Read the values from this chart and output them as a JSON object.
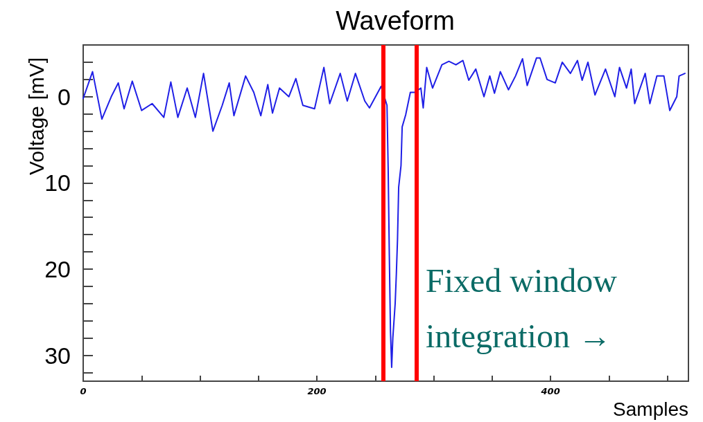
{
  "chart_data": {
    "type": "line",
    "title": "Waveform",
    "xlabel": "Samples",
    "ylabel": "Voltage [mV]",
    "annotations": [
      "Fixed window integration →"
    ],
    "series": [
      {
        "color": "#1f1fe6",
        "x": [
          0,
          8,
          16,
          24,
          30,
          35,
          42,
          50,
          59,
          69,
          75,
          81,
          89,
          96,
          103,
          111,
          119,
          125,
          129,
          139,
          146,
          152,
          158,
          162,
          168,
          176,
          182,
          188,
          198,
          206,
          211,
          220,
          226,
          233,
          241,
          245,
          251,
          255,
          260,
          261,
          262,
          263,
          264,
          265,
          267,
          268,
          269,
          270,
          272,
          273,
          276,
          280,
          284,
          289,
          291,
          294,
          299,
          307,
          313,
          319,
          325,
          330,
          336,
          343,
          348,
          352,
          357,
          364,
          370,
          376,
          380,
          388,
          391,
          397,
          404,
          410,
          417,
          423,
          427,
          432,
          438,
          447,
          455,
          459,
          465,
          469,
          472,
          481,
          485,
          491,
          497,
          502,
          508,
          510,
          515
        ],
        "values": [
          0.2,
          -2.9,
          2.6,
          0,
          -1.6,
          1.4,
          -1.8,
          1.6,
          0.8,
          2.4,
          -1.7,
          2.4,
          -1,
          2.4,
          -2.7,
          4,
          1,
          -1.6,
          2.2,
          -2.4,
          -0.5,
          2.2,
          -1.4,
          1.9,
          -1,
          0,
          -2.1,
          1,
          1.4,
          -3.4,
          0.8,
          -2.7,
          0.5,
          -2.7,
          0.5,
          1.3,
          -0.2,
          -1.2,
          1,
          8.2,
          18.4,
          27.2,
          31.4,
          28,
          24,
          20.6,
          16.6,
          10.5,
          8,
          3.5,
          2.1,
          -0.5,
          -0.5,
          -1,
          1.3,
          -3.4,
          -1,
          -3.7,
          -4.1,
          -3.7,
          -4.2,
          -1.9,
          -3.2,
          0,
          -2.4,
          -0.4,
          -2.9,
          -0.8,
          -2.4,
          -4.4,
          -1.3,
          -4.5,
          -4.5,
          -2,
          -1.6,
          -4,
          -2.7,
          -4.2,
          -1.9,
          -4,
          -0.2,
          -3.2,
          0,
          -3.4,
          -1,
          -3.2,
          0.8,
          -2.7,
          0.8,
          -2.4,
          -2.4,
          1.6,
          0,
          -2.4,
          -2.7
        ]
      }
    ],
    "xlim": [
      0,
      518
    ],
    "xticks": [
      0,
      {
        "value": 50,
        "label": null
      },
      {
        "value": 100,
        "label": null
      },
      {
        "value": 150,
        "label": null
      },
      200,
      {
        "value": 250,
        "label": null
      },
      {
        "value": 300,
        "label": null
      },
      {
        "value": 350,
        "label": null
      },
      400,
      {
        "value": 450,
        "label": null
      },
      {
        "value": 500,
        "label": null
      }
    ],
    "ylim": [
      33,
      -6
    ],
    "yticks": [
      {
        "value": -4,
        "label": null
      },
      {
        "value": -2,
        "label": null
      },
      0,
      {
        "value": 2,
        "label": null
      },
      {
        "value": 4,
        "label": null
      },
      {
        "value": 6,
        "label": null
      },
      {
        "value": 8,
        "label": null
      },
      10,
      {
        "value": 12,
        "label": null
      },
      {
        "value": 14,
        "label": null
      },
      {
        "value": 16,
        "label": null
      },
      {
        "value": 18,
        "label": null
      },
      20,
      {
        "value": 22,
        "label": null
      },
      {
        "value": 24,
        "label": null
      },
      {
        "value": 26,
        "label": null
      },
      {
        "value": 28,
        "label": null
      },
      30,
      {
        "value": 32,
        "label": null
      }
    ],
    "ref_lines": [
      {
        "axis": "x",
        "value": 257,
        "color": "#ff0000"
      },
      {
        "axis": "x",
        "value": 285,
        "color": "#ff0000"
      }
    ],
    "marker": "none",
    "line_style": "solid",
    "grid": false
  }
}
